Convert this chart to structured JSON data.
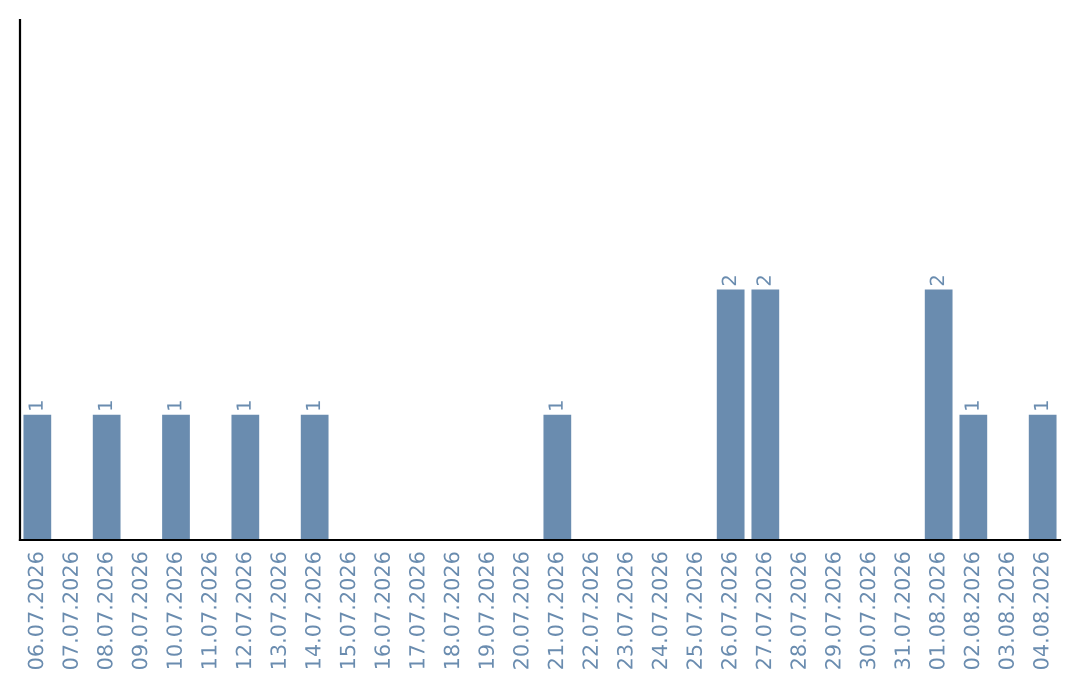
{
  "chart_data": {
    "type": "bar",
    "categories": [
      "06.07.2026",
      "07.07.2026",
      "08.07.2026",
      "09.07.2026",
      "10.07.2026",
      "11.07.2026",
      "12.07.2026",
      "13.07.2026",
      "14.07.2026",
      "15.07.2026",
      "16.07.2026",
      "17.07.2026",
      "18.07.2026",
      "19.07.2026",
      "20.07.2026",
      "21.07.2026",
      "22.07.2026",
      "23.07.2026",
      "24.07.2026",
      "25.07.2026",
      "26.07.2026",
      "27.07.2026",
      "28.07.2026",
      "29.07.2026",
      "30.07.2026",
      "31.07.2026",
      "01.08.2026",
      "02.08.2026",
      "03.08.2026",
      "04.08.2026"
    ],
    "values": [
      1,
      0,
      1,
      0,
      1,
      0,
      1,
      0,
      1,
      0,
      0,
      0,
      0,
      0,
      0,
      1,
      0,
      0,
      0,
      0,
      2,
      2,
      0,
      0,
      0,
      0,
      2,
      1,
      0,
      1
    ],
    "value_labels": [
      "1",
      null,
      "1",
      null,
      "1",
      null,
      "1",
      null,
      "1",
      null,
      null,
      null,
      null,
      null,
      null,
      "1",
      null,
      null,
      null,
      null,
      "2",
      "2",
      null,
      null,
      null,
      null,
      "2",
      "1",
      null,
      "1"
    ],
    "color": "#6a8caf",
    "ylim": [
      0,
      4.15
    ],
    "tick_labels": "x",
    "grid": false,
    "legend": false
  }
}
